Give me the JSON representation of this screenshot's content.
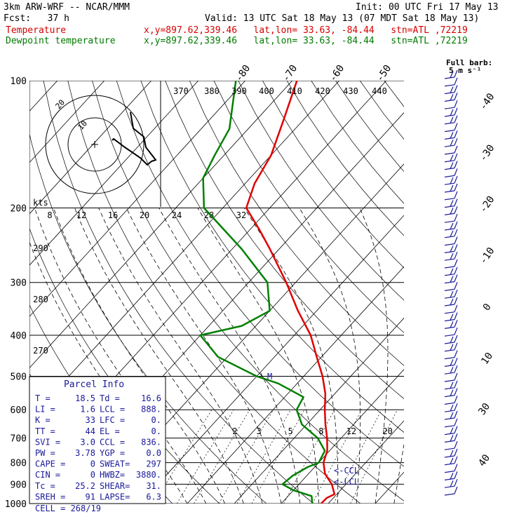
{
  "header": {
    "model": "3km ARW-WRF -- NCAR/MMM",
    "init": "Init: 00 UTC Fri 17 May 13",
    "fcst": "Fcst:   37 h",
    "valid": "Valid: 13 UTC Sat 18 May 13 (07 MDT Sat 18 May 13)",
    "temp_label": "Temperature",
    "dew_label": "Dewpoint temperature",
    "location": "x,y=897.62,339.46   lat,lon= 33.63, -84.44   stn=ATL ,72219"
  },
  "colors": {
    "temperature": "#e00000",
    "dewpoint": "#008000",
    "barbs": "#1a1a9a",
    "skew": "#000000"
  },
  "chart_data": {
    "type": "line",
    "pressure_levels": [
      100,
      200,
      300,
      400,
      500,
      600,
      700,
      800,
      900,
      1000
    ],
    "skew_temp_labels": [
      "-80",
      "-70",
      "-60",
      "-50",
      "-40",
      "-30",
      "-20",
      "-10",
      "0",
      "10",
      "30",
      "40"
    ],
    "theta_labels": [
      "370",
      "380",
      "390",
      "400",
      "410",
      "420",
      "430",
      "440",
      "290",
      "280",
      "270"
    ],
    "mixing_ratio_labels": [
      "2",
      "3",
      "5",
      "8",
      "12",
      "20"
    ],
    "hodograph": {
      "ring_labels": [
        "20",
        "10"
      ],
      "speed_labels": [
        "8",
        "12",
        "16",
        "20",
        "24",
        "28",
        "32"
      ],
      "units": "kts"
    },
    "barb_legend": [
      "Full barb:",
      "5 m s⁻¹"
    ],
    "annotations": [
      "M",
      "<-CCL",
      "<-LCL"
    ],
    "series": [
      {
        "name": "Temperature",
        "points": [
          [
            1000,
            18.5
          ],
          [
            970,
            18.6
          ],
          [
            950,
            19.5
          ],
          [
            900,
            17
          ],
          [
            850,
            13.5
          ],
          [
            800,
            11
          ],
          [
            750,
            9.5
          ],
          [
            700,
            7
          ],
          [
            650,
            4
          ],
          [
            600,
            1
          ],
          [
            550,
            -2
          ],
          [
            500,
            -6
          ],
          [
            450,
            -11
          ],
          [
            400,
            -16.5
          ],
          [
            350,
            -24
          ],
          [
            300,
            -32
          ],
          [
            250,
            -42
          ],
          [
            225,
            -48
          ],
          [
            200,
            -55
          ],
          [
            175,
            -58
          ],
          [
            150,
            -60
          ],
          [
            125,
            -64
          ],
          [
            100,
            -69
          ]
        ]
      },
      {
        "name": "Dewpoint temperature",
        "points": [
          [
            1000,
            16.6
          ],
          [
            960,
            15
          ],
          [
            930,
            10
          ],
          [
            900,
            6.5
          ],
          [
            860,
            7
          ],
          [
            820,
            8.5
          ],
          [
            800,
            10
          ],
          [
            750,
            9
          ],
          [
            700,
            5
          ],
          [
            650,
            -1
          ],
          [
            600,
            -5
          ],
          [
            560,
            -6
          ],
          [
            520,
            -14
          ],
          [
            500,
            -20
          ],
          [
            450,
            -32
          ],
          [
            400,
            -40
          ],
          [
            380,
            -33
          ],
          [
            350,
            -30
          ],
          [
            300,
            -36
          ],
          [
            250,
            -48
          ],
          [
            200,
            -64
          ],
          [
            170,
            -70
          ],
          [
            150,
            -72
          ],
          [
            130,
            -74
          ],
          [
            100,
            -82
          ]
        ]
      }
    ]
  },
  "parcel_info": {
    "title": "Parcel Info",
    "rows": [
      [
        "T  =",
        "18.5",
        "Td =",
        "16.6"
      ],
      [
        "LI =",
        "1.6",
        "LCL =",
        "888."
      ],
      [
        "K  =",
        "33",
        "LFC =",
        "0."
      ],
      [
        "TT =",
        "44",
        "EL =",
        "0."
      ],
      [
        "SVI =",
        "3.0",
        "CCL =",
        "836."
      ],
      [
        "PW =",
        "3.78",
        "YGP =",
        "0.0"
      ],
      [
        "CAPE =",
        "0",
        "SWEAT=",
        "297"
      ],
      [
        "CIN =",
        "0",
        "HWBZ=",
        "3880."
      ],
      [
        "Tc =",
        "25.2",
        "SHEAR=",
        "31."
      ],
      [
        "SREH =",
        "91",
        "LAPSE=",
        "6.3"
      ]
    ],
    "cell": "CELL = 268/19"
  }
}
